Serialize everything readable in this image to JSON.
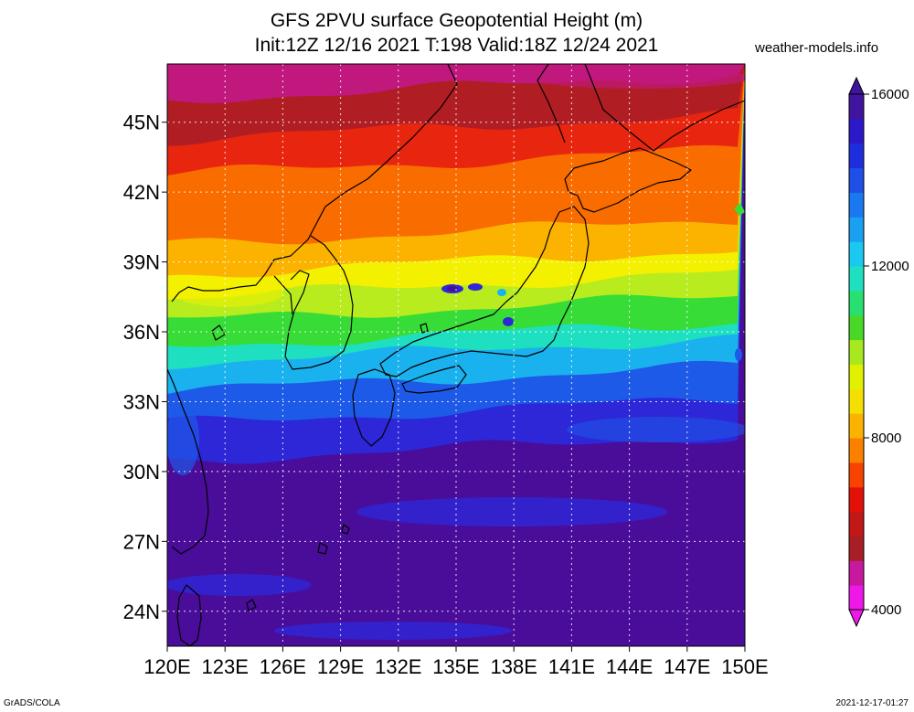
{
  "title": {
    "line1": "GFS 2PVU surface Geopotential Height (m)",
    "line2": "Init:12Z 12/16 2021 T:198 Valid:18Z 12/24 2021"
  },
  "site_label": "weather-models.info",
  "footer": {
    "left": "GrADS/COLA",
    "right": "2021-12-17-01:27"
  },
  "map": {
    "lat_labels": [
      "45N",
      "42N",
      "39N",
      "36N",
      "33N",
      "30N",
      "27N",
      "24N"
    ],
    "lat_values": [
      45,
      42,
      39,
      36,
      33,
      30,
      27,
      24
    ],
    "lon_labels": [
      "120E",
      "123E",
      "126E",
      "129E",
      "132E",
      "135E",
      "138E",
      "141E",
      "144E",
      "147E",
      "150E"
    ],
    "lon_values": [
      120,
      123,
      126,
      129,
      132,
      135,
      138,
      141,
      144,
      147,
      150
    ],
    "lat_range": [
      22.5,
      47.5
    ],
    "lon_range": [
      120,
      150
    ],
    "band_colors": [
      "#c0187c",
      "#b01e24",
      "#e8260f",
      "#f96c00",
      "#fbb300",
      "#f3f000",
      "#b8ec1e",
      "#37dc37",
      "#1ee0c0",
      "#1ab2ee",
      "#1e5ae8",
      "#2d27d8",
      "#4a0d9a"
    ],
    "band_lat_bounds": [
      46.5,
      44.8,
      43.3,
      40.3,
      39.0,
      38.0,
      37.0,
      35.9,
      35.2,
      34.0,
      32.6,
      31.0
    ]
  },
  "colorbar": {
    "labels": [
      "16000",
      "12000",
      "8000",
      "4000"
    ],
    "label_values": [
      16000,
      12000,
      8000,
      4000
    ],
    "range": [
      4000,
      16000
    ],
    "colors": [
      "#ee18e8",
      "#c818a0",
      "#a81e26",
      "#c21818",
      "#e4100a",
      "#f84200",
      "#fb8000",
      "#fbb300",
      "#f3e000",
      "#e0f000",
      "#a8e81e",
      "#48d828",
      "#28e070",
      "#1ee0c0",
      "#1ac8f0",
      "#1aa0f0",
      "#1a78f0",
      "#1e50e8",
      "#1e2edc",
      "#2b18c8",
      "#40149e"
    ]
  }
}
